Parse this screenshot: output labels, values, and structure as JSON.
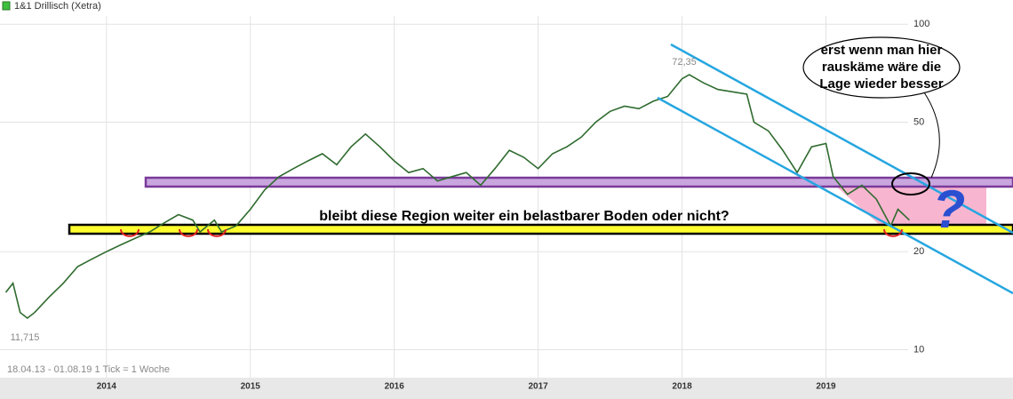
{
  "chart_data": {
    "type": "line",
    "title": "1&1 Drillisch (Xetra)",
    "footnote": "18.04.13 - 01.08.19   1 Tick = 1 Woche",
    "log_scale": true,
    "grid": true,
    "xlim": [
      2013.26,
      2020.3
    ],
    "xticks": [
      2014,
      2015,
      2016,
      2017,
      2018,
      2019
    ],
    "ylim": [
      8.2,
      106
    ],
    "yticks": [
      10,
      20,
      50,
      100
    ],
    "annotations": {
      "high": "72,35",
      "low": "11,715",
      "band_text": "bleibt diese Region  weiter ein belastbarer Boden oder nicht?",
      "question": "?",
      "speech": [
        "erst wenn man hier",
        "rauskäme wäre die",
        "Lage wieder besser"
      ]
    },
    "series": [
      {
        "name": "1&1 Drillisch (Xetra)",
        "color": "#2f6b2f",
        "x": [
          2013.3,
          2013.35,
          2013.4,
          2013.45,
          2013.5,
          2013.6,
          2013.7,
          2013.8,
          2013.9,
          2014.0,
          2014.1,
          2014.2,
          2014.3,
          2014.4,
          2014.5,
          2014.6,
          2014.65,
          2014.75,
          2014.8,
          2014.9,
          2015.0,
          2015.1,
          2015.2,
          2015.3,
          2015.4,
          2015.5,
          2015.6,
          2015.7,
          2015.8,
          2015.9,
          2016.0,
          2016.1,
          2016.2,
          2016.3,
          2016.4,
          2016.5,
          2016.6,
          2016.7,
          2016.8,
          2016.9,
          2017.0,
          2017.1,
          2017.2,
          2017.3,
          2017.4,
          2017.5,
          2017.6,
          2017.7,
          2017.8,
          2017.9,
          2018.0,
          2018.05,
          2018.15,
          2018.25,
          2018.35,
          2018.45,
          2018.5,
          2018.6,
          2018.7,
          2018.8,
          2018.9,
          2019.0,
          2019.05,
          2019.15,
          2019.25,
          2019.35,
          2019.45,
          2019.5,
          2019.58
        ],
        "values": [
          15,
          16,
          13,
          12.5,
          13,
          14.5,
          16,
          18,
          19,
          20,
          21,
          22,
          23,
          24.5,
          26,
          25,
          23,
          25,
          23,
          24,
          27,
          31,
          34,
          36,
          38,
          40,
          37,
          42,
          46,
          42,
          38,
          35,
          36,
          33,
          34,
          35,
          32,
          36,
          41,
          39,
          36,
          40,
          42,
          45,
          50,
          54,
          56,
          55,
          58,
          60,
          68,
          70,
          66,
          63,
          62,
          61,
          50,
          47,
          41,
          35,
          42,
          43,
          34,
          30,
          32,
          29,
          24,
          27,
          25
        ]
      }
    ]
  }
}
